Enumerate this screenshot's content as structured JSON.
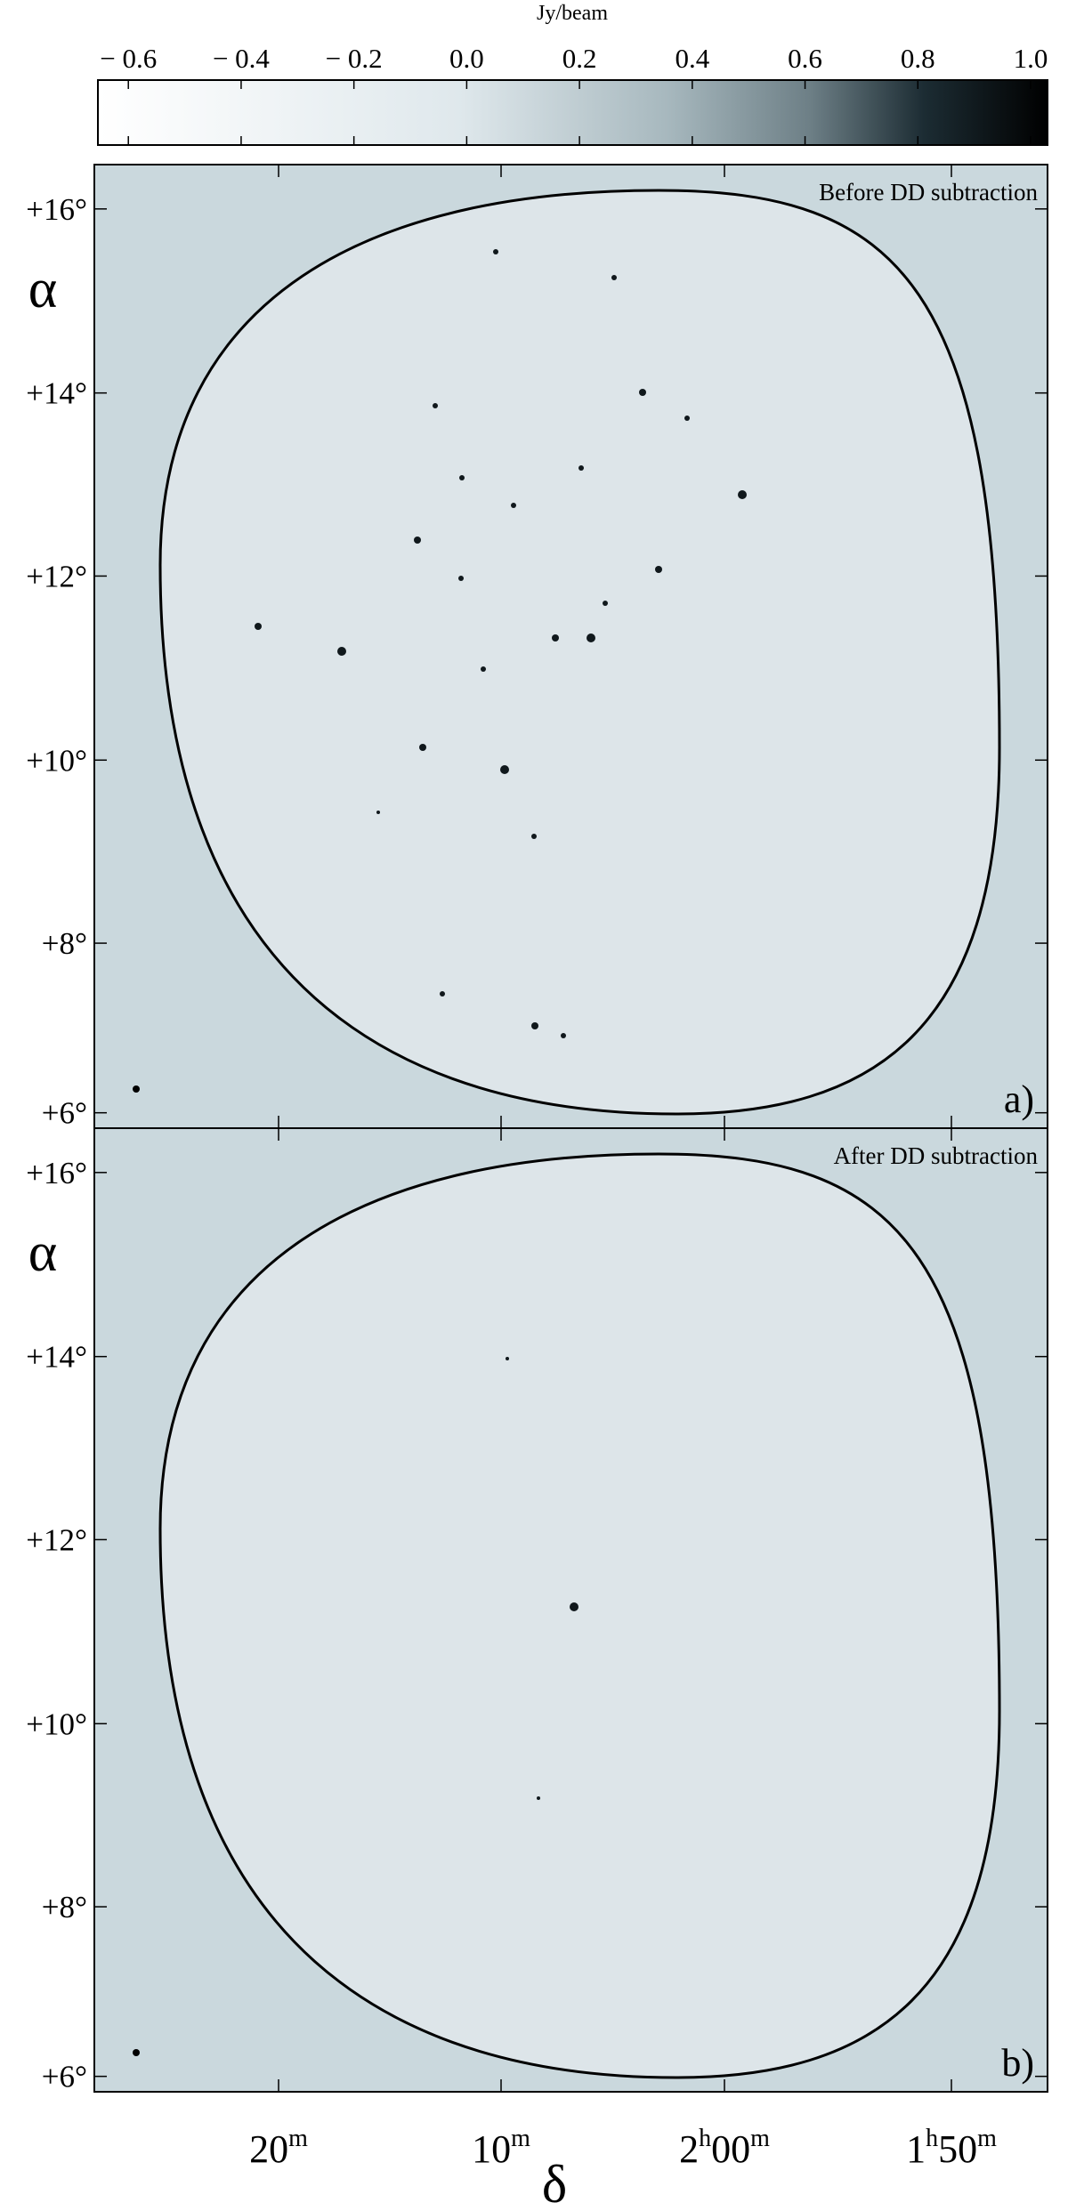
{
  "figure": {
    "colorbar": {
      "label": "Jy/beam",
      "lim": [
        -0.654,
        1.03
      ],
      "ticks": [
        {
          "value": -0.6,
          "label": "− 0.6"
        },
        {
          "value": -0.4,
          "label": "− 0.4"
        },
        {
          "value": -0.2,
          "label": "− 0.2"
        },
        {
          "value": 0,
          "label": "0.0"
        },
        {
          "value": 0.2,
          "label": "0.2"
        },
        {
          "value": 0.4,
          "label": "0.4"
        },
        {
          "value": 0.6,
          "label": "0.6"
        },
        {
          "value": 0.8,
          "label": "0.8"
        },
        {
          "value": 1,
          "label": "1.0"
        }
      ]
    },
    "panels": [
      {
        "title": "Before DD subtraction",
        "tag": "a)",
        "y_label": "α",
        "y_ticks": [
          "+16°",
          "+14°",
          "+12°",
          "+10°",
          "+8°",
          "+6°"
        ]
      },
      {
        "title": "After DD subtraction",
        "tag": "b)",
        "y_label": "α",
        "y_ticks": [
          "+16°",
          "+14°",
          "+12°",
          "+10°",
          "+8°",
          "+6°"
        ]
      }
    ],
    "x_label": "δ",
    "x_ticks": [
      [
        "20",
        "m"
      ],
      [
        "10",
        "m"
      ],
      [
        "2",
        "h",
        "00",
        "m"
      ],
      [
        "1",
        "h",
        "50",
        "m"
      ]
    ]
  }
}
